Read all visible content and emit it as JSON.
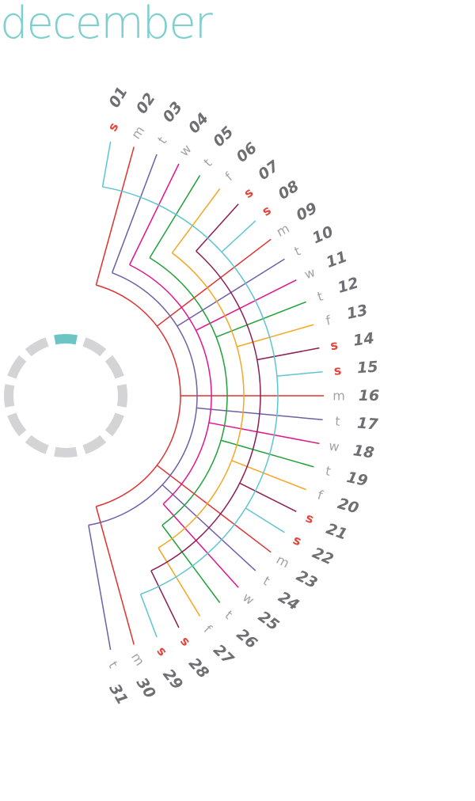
{
  "title": "december",
  "days": [
    {
      "n": "01",
      "w": "s",
      "weekend": true
    },
    {
      "n": "02",
      "w": "m",
      "weekend": false
    },
    {
      "n": "03",
      "w": "t",
      "weekend": false
    },
    {
      "n": "04",
      "w": "w",
      "weekend": false
    },
    {
      "n": "05",
      "w": "t",
      "weekend": false
    },
    {
      "n": "06",
      "w": "f",
      "weekend": false
    },
    {
      "n": "07",
      "w": "s",
      "weekend": true
    },
    {
      "n": "08",
      "w": "s",
      "weekend": true
    },
    {
      "n": "09",
      "w": "m",
      "weekend": false
    },
    {
      "n": "10",
      "w": "t",
      "weekend": false
    },
    {
      "n": "11",
      "w": "w",
      "weekend": false
    },
    {
      "n": "12",
      "w": "t",
      "weekend": false
    },
    {
      "n": "13",
      "w": "f",
      "weekend": false
    },
    {
      "n": "14",
      "w": "s",
      "weekend": true
    },
    {
      "n": "15",
      "w": "s",
      "weekend": true
    },
    {
      "n": "16",
      "w": "m",
      "weekend": false
    },
    {
      "n": "17",
      "w": "t",
      "weekend": false
    },
    {
      "n": "18",
      "w": "w",
      "weekend": false
    },
    {
      "n": "19",
      "w": "t",
      "weekend": false
    },
    {
      "n": "20",
      "w": "f",
      "weekend": false
    },
    {
      "n": "21",
      "w": "s",
      "weekend": true
    },
    {
      "n": "22",
      "w": "s",
      "weekend": true
    },
    {
      "n": "23",
      "w": "m",
      "weekend": false
    },
    {
      "n": "24",
      "w": "t",
      "weekend": false
    },
    {
      "n": "25",
      "w": "w",
      "weekend": false
    },
    {
      "n": "26",
      "w": "t",
      "weekend": false
    },
    {
      "n": "27",
      "w": "f",
      "weekend": false
    },
    {
      "n": "28",
      "w": "s",
      "weekend": true
    },
    {
      "n": "29",
      "w": "s",
      "weekend": true
    },
    {
      "n": "30",
      "w": "m",
      "weekend": false
    },
    {
      "n": "31",
      "w": "t",
      "weekend": false
    }
  ],
  "weekday_colors": {
    "m": "#e03131",
    "t1": "#6f5ea8",
    "w": "#e0168a",
    "t2": "#21a13a",
    "f": "#f5a623",
    "s1": "#8c1d55",
    "s2": "#5cc6d0"
  },
  "text_colors": {
    "title": "#7fcfcf",
    "number": "#6f6f73",
    "weekday": "#a3a3a6",
    "weekend": "#e2463e"
  },
  "progress": {
    "segments": 12,
    "active_segments": 1,
    "active_color": "#6cc4c4",
    "inactive_color": "#d4d4d6"
  }
}
